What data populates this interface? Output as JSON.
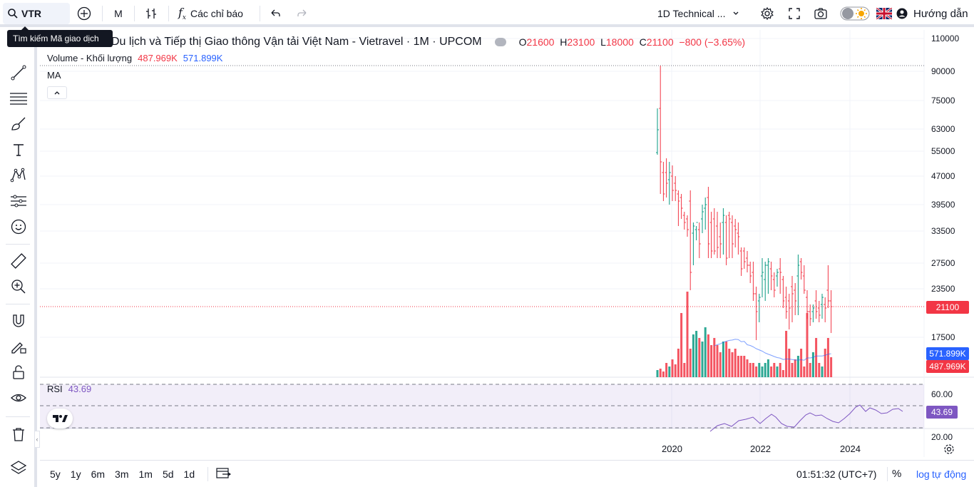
{
  "toolbar": {
    "symbol": "VTR",
    "interval": "M",
    "indicators_label": "Các chỉ báo",
    "layout_name": "1D Technical ...",
    "guide_label": "Hướng dẫn"
  },
  "tooltip": "Tìm kiếm Mã giao dịch",
  "legend": {
    "title": "Du lịch và Tiếp thị Giao thông Vận tải Việt Nam - Vietravel · 1M · UPCOM",
    "o_label": "O",
    "o_value": "21600",
    "h_label": "H",
    "h_value": "23100",
    "l_label": "L",
    "l_value": "18000",
    "c_label": "C",
    "c_value": "21100",
    "change": "−800 (−3.65%)",
    "volume_label": "Volume - Khối lượng",
    "volume_value": "487.969K",
    "volume_ma": "571.899K",
    "ma_label": "MA",
    "rsi_label": "RSI",
    "rsi_value": "43.69"
  },
  "price_axis": {
    "ticks": [
      "110000",
      "90000",
      "75000",
      "63000",
      "55000",
      "47000",
      "39500",
      "33500",
      "27500",
      "23500",
      "17500"
    ],
    "last_price": "21100",
    "vol_ma_label": "571.899K",
    "vol_label": "487.969K"
  },
  "rsi_axis": {
    "ticks": [
      "60.00",
      "40.00",
      "20.00"
    ],
    "value_label": "43.69"
  },
  "time_axis": [
    "2020",
    "2022",
    "2024"
  ],
  "bottom": {
    "ranges": [
      "5y",
      "1y",
      "6m",
      "3m",
      "1m",
      "5d",
      "1d"
    ],
    "clock": "01:51:32 (UTC+7)",
    "percent": "%",
    "log": "log",
    "auto": "tự động"
  },
  "chart_data": {
    "type": "ohlc",
    "interval": "1M",
    "last_bar": {
      "open": 21600,
      "high": 23100,
      "low": 18000,
      "close": 21100,
      "volume": 487969
    },
    "volume_ma": 571899,
    "rsi": 43.69,
    "price_axis_log": true,
    "colors": {
      "up": "#089981",
      "down": "#f23645",
      "ma": "#2962ff",
      "rsi": "#7e57c2"
    }
  },
  "colors": {
    "accent": "#2962ff",
    "down": "#f23645",
    "up": "#089981"
  }
}
